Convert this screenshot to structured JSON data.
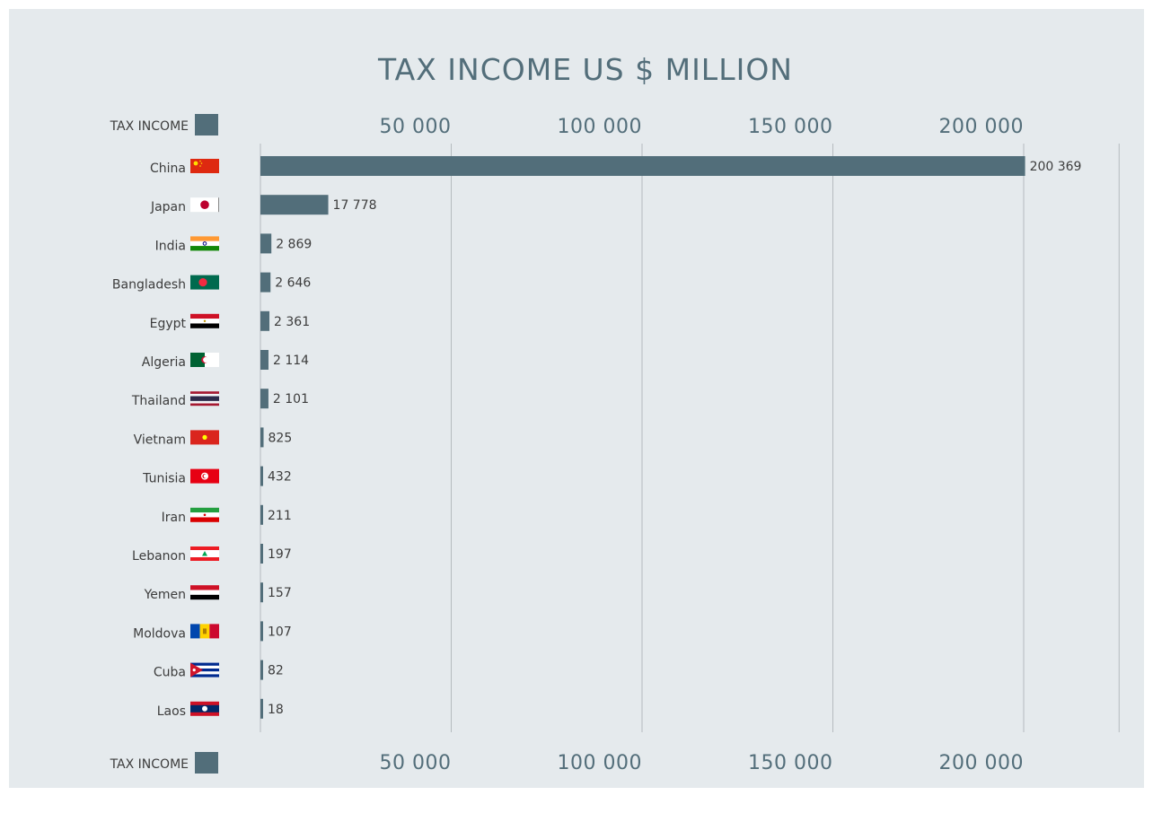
{
  "chart_data": {
    "type": "bar",
    "orientation": "horizontal",
    "title": "TAX INCOME US $ MILLION",
    "legend_label": "TAX INCOME",
    "categories": [
      "China",
      "Japan",
      "India",
      "Bangladesh",
      "Egypt",
      "Algeria",
      "Thailand",
      "Vietnam",
      "Tunisia",
      "Iran",
      "Lebanon",
      "Yemen",
      "Moldova",
      "Cuba",
      "Laos"
    ],
    "values": [
      200369,
      17778,
      2869,
      2646,
      2361,
      2114,
      2101,
      825,
      432,
      211,
      197,
      157,
      107,
      82,
      18
    ],
    "value_labels": [
      "200 369",
      "17 778",
      "2 869",
      "2 646",
      "2 361",
      "2 114",
      "2 101",
      "825",
      "432",
      "211",
      "197",
      "157",
      "107",
      "82",
      "18"
    ],
    "xticks": [
      50000,
      100000,
      150000,
      200000
    ],
    "xtick_labels": [
      "50 000",
      "100 000",
      "150 000",
      "200 000"
    ],
    "xlim": [
      0,
      225000
    ],
    "grid": true,
    "legend_placement": "top-left and bottom-left",
    "flags": [
      "china-flag",
      "japan-flag",
      "india-flag",
      "bangladesh-flag",
      "egypt-flag",
      "algeria-flag",
      "thailand-flag",
      "vietnam-flag",
      "tunisia-flag",
      "iran-flag",
      "lebanon-flag",
      "yemen-flag",
      "moldova-flag",
      "cuba-flag",
      "laos-flag"
    ],
    "colors": {
      "bar": "#526e7a",
      "background": "#e5eaed",
      "grid": "#b5bbbf",
      "title": "#536e7a"
    }
  }
}
